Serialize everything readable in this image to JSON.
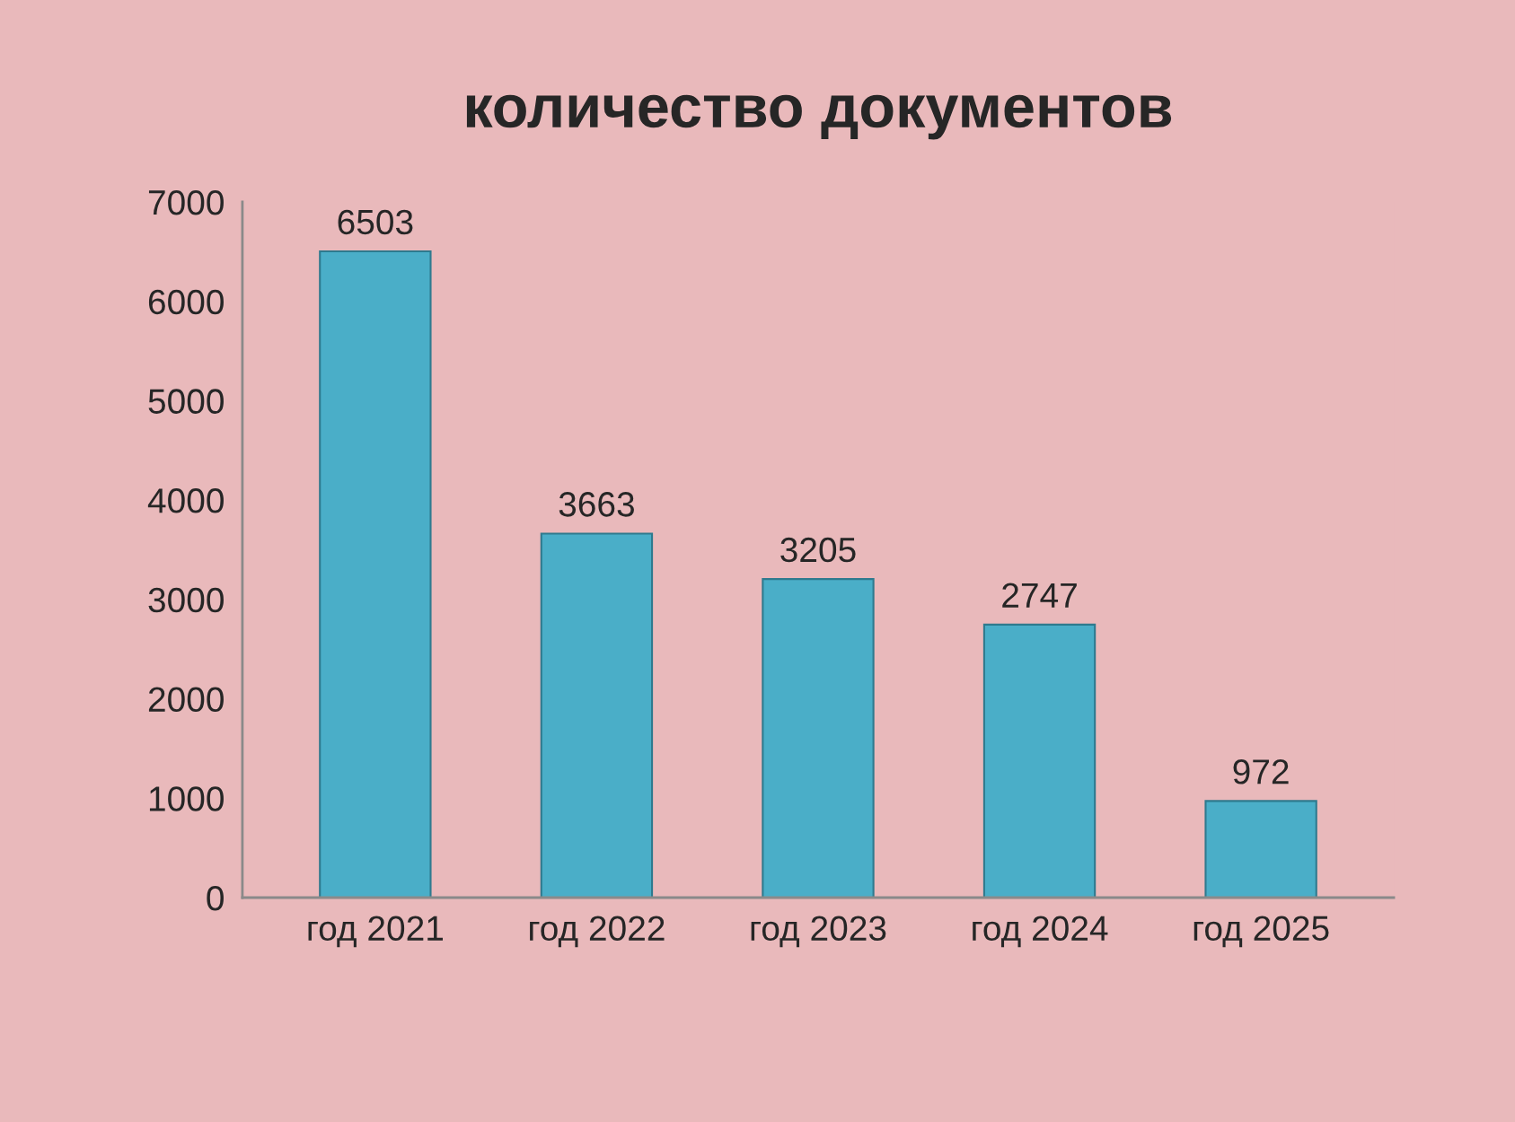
{
  "chart_data": {
    "type": "bar",
    "title": "количество документов",
    "categories": [
      "год 2021",
      "год 2022",
      "год 2023",
      "год 2024",
      "год 2025"
    ],
    "values": [
      6503,
      3663,
      3205,
      2747,
      972
    ],
    "color": "#4aaec8",
    "ylim": [
      0,
      7000
    ],
    "yticks": [
      0,
      1000,
      2000,
      3000,
      4000,
      5000,
      6000,
      7000
    ],
    "data_labels": true
  }
}
